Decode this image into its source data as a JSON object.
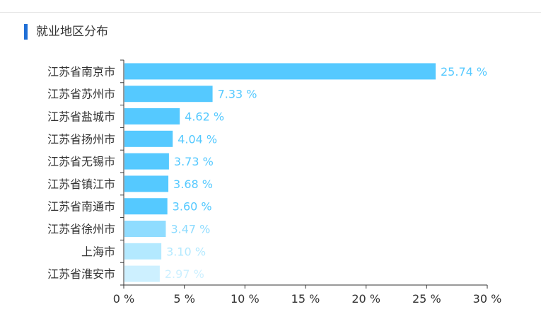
{
  "section": {
    "title": "就业地区分布"
  },
  "chart_data": {
    "type": "bar",
    "orientation": "horizontal",
    "title": "就业地区分布",
    "categories": [
      "江苏省南京市",
      "江苏省苏州市",
      "江苏省盐城市",
      "江苏省扬州市",
      "江苏省无锡市",
      "江苏省镇江市",
      "江苏省南通市",
      "江苏省徐州市",
      "上海市",
      "江苏省淮安市"
    ],
    "values": [
      25.74,
      7.33,
      4.62,
      4.04,
      3.73,
      3.68,
      3.6,
      3.47,
      3.1,
      2.97
    ],
    "value_labels": [
      "25.74 %",
      "7.33 %",
      "4.62 %",
      "4.04 %",
      "3.73 %",
      "3.68 %",
      "3.60 %",
      "3.47 %",
      "3.10 %",
      "2.97 %"
    ],
    "bar_colors": [
      "#55c9ff",
      "#55c9ff",
      "#55c9ff",
      "#55c9ff",
      "#55c9ff",
      "#55c9ff",
      "#55c9ff",
      "#8fdcff",
      "#b3e9ff",
      "#cdf0ff"
    ],
    "label_colors": [
      "#55c9ff",
      "#55c9ff",
      "#55c9ff",
      "#55c9ff",
      "#55c9ff",
      "#55c9ff",
      "#55c9ff",
      "#8fdcff",
      "#b3e9ff",
      "#cdf0ff"
    ],
    "xlim": [
      0,
      30
    ],
    "xticks": [
      0,
      5,
      10,
      15,
      20,
      25,
      30
    ],
    "xtick_labels": [
      "0 %",
      "5 %",
      "10 %",
      "15 %",
      "20 %",
      "25 %",
      "30 %"
    ],
    "xlabel": "",
    "ylabel": "",
    "grid": false,
    "legend": "none"
  }
}
